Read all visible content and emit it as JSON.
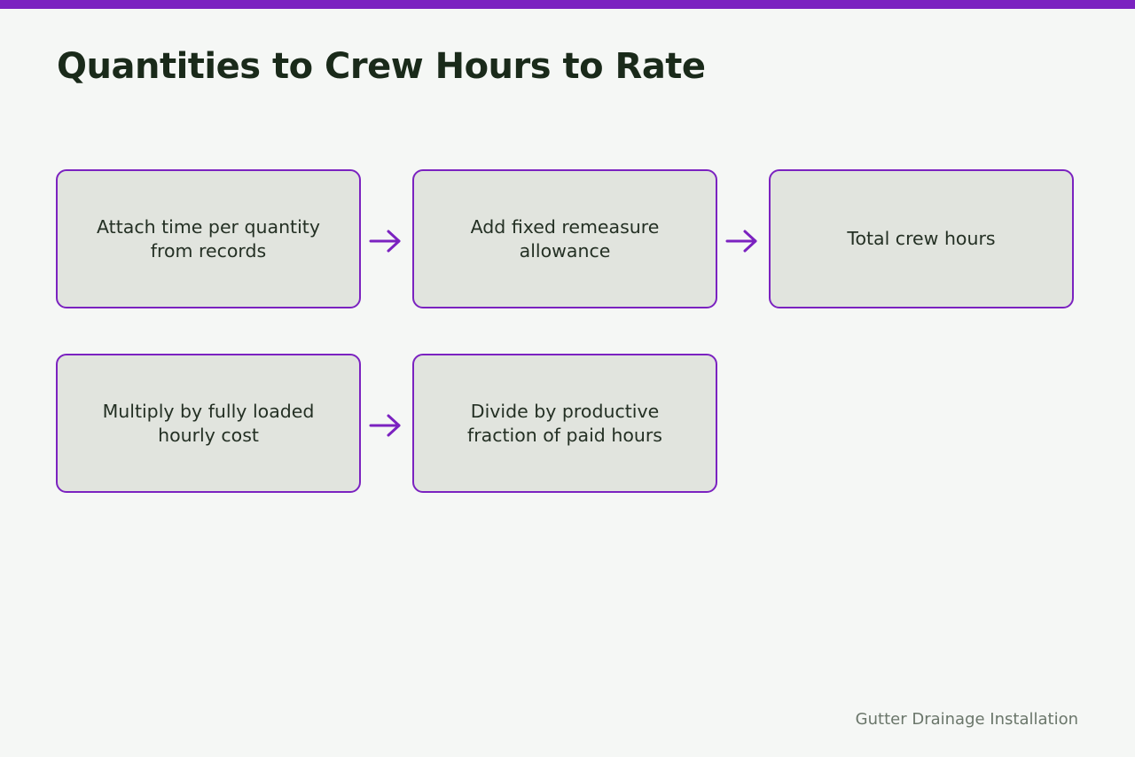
{
  "title": "Quantities to Crew Hours to Rate",
  "steps": [
    {
      "label": "Attach time per quantity from records"
    },
    {
      "label": "Add fixed remeasure allowance"
    },
    {
      "label": "Total crew hours"
    },
    {
      "label": "Multiply by fully loaded hourly cost"
    },
    {
      "label": "Divide by productive fraction of paid hours"
    }
  ],
  "footer": "Gutter Drainage Installation",
  "colors": {
    "accent": "#7b22c0",
    "box_fill": "#e1e4de",
    "background": "#f5f7f5"
  }
}
